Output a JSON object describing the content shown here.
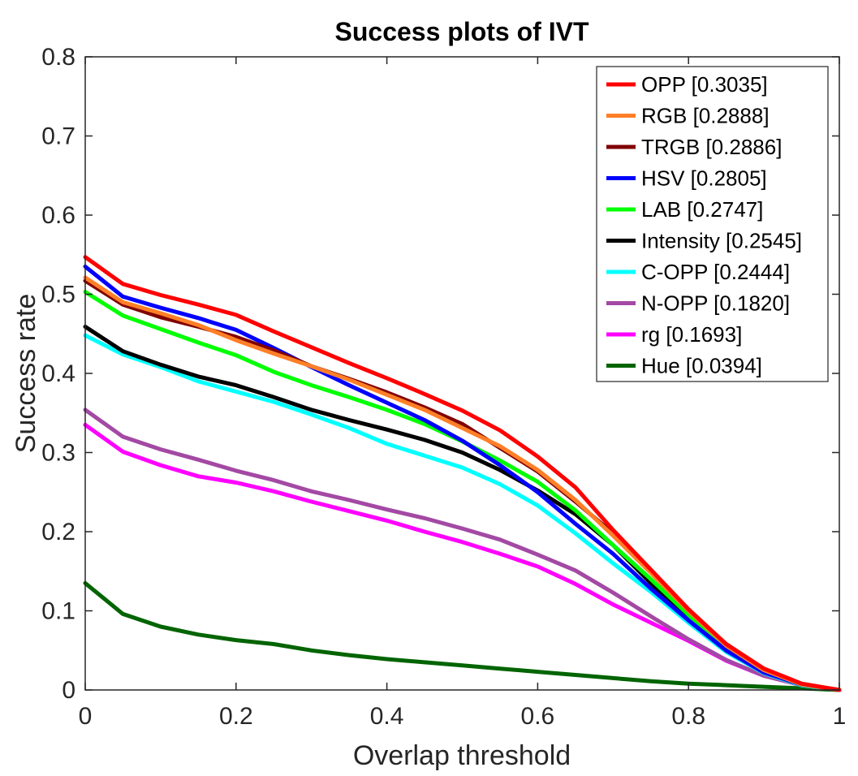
{
  "chart_data": {
    "type": "line",
    "title": "Success plots of IVT",
    "xlabel": "Overlap threshold",
    "ylabel": "Success rate",
    "xlim": [
      0,
      1
    ],
    "ylim": [
      0,
      0.8
    ],
    "xticks": [
      "0",
      "0.2",
      "0.4",
      "0.6",
      "0.8",
      "1"
    ],
    "yticks": [
      "0",
      "0.1",
      "0.2",
      "0.3",
      "0.4",
      "0.5",
      "0.6",
      "0.7",
      "0.8"
    ],
    "grid": false,
    "legend_position": "top-right",
    "x": [
      0,
      0.05,
      0.1,
      0.15,
      0.2,
      0.25,
      0.3,
      0.35,
      0.4,
      0.45,
      0.5,
      0.55,
      0.6,
      0.65,
      0.7,
      0.75,
      0.8,
      0.85,
      0.9,
      0.95,
      1
    ],
    "series": [
      {
        "name": "OPP [0.3035]",
        "color": "#ff0000",
        "values": [
          0.547,
          0.513,
          0.499,
          0.487,
          0.474,
          0.453,
          0.433,
          0.413,
          0.394,
          0.374,
          0.353,
          0.328,
          0.295,
          0.256,
          0.202,
          0.152,
          0.102,
          0.058,
          0.027,
          0.008,
          0
        ]
      },
      {
        "name": "RGB [0.2888]",
        "color": "#ff7f27",
        "values": [
          0.521,
          0.49,
          0.476,
          0.461,
          0.442,
          0.425,
          0.409,
          0.392,
          0.373,
          0.354,
          0.331,
          0.308,
          0.278,
          0.24,
          0.195,
          0.148,
          0.1,
          0.056,
          0.025,
          0.007,
          0
        ]
      },
      {
        "name": "TRGB [0.2886]",
        "color": "#800000",
        "values": [
          0.517,
          0.487,
          0.471,
          0.459,
          0.446,
          0.429,
          0.409,
          0.393,
          0.376,
          0.357,
          0.336,
          0.306,
          0.276,
          0.238,
          0.198,
          0.15,
          0.1,
          0.058,
          0.026,
          0.007,
          0
        ]
      },
      {
        "name": "HSV [0.2805]",
        "color": "#0000ff",
        "values": [
          0.535,
          0.497,
          0.483,
          0.47,
          0.455,
          0.432,
          0.408,
          0.385,
          0.363,
          0.341,
          0.315,
          0.284,
          0.25,
          0.21,
          0.172,
          0.128,
          0.088,
          0.05,
          0.022,
          0.007,
          0
        ]
      },
      {
        "name": "LAB [0.2747]",
        "color": "#00ff00",
        "values": [
          0.503,
          0.473,
          0.456,
          0.439,
          0.423,
          0.402,
          0.385,
          0.37,
          0.354,
          0.336,
          0.314,
          0.29,
          0.263,
          0.227,
          0.183,
          0.14,
          0.095,
          0.053,
          0.024,
          0.007,
          0
        ]
      },
      {
        "name": "Intensity [0.2545]",
        "color": "#000000",
        "values": [
          0.459,
          0.428,
          0.411,
          0.396,
          0.385,
          0.37,
          0.354,
          0.341,
          0.329,
          0.316,
          0.3,
          0.278,
          0.252,
          0.222,
          0.183,
          0.135,
          0.088,
          0.05,
          0.022,
          0.007,
          0
        ]
      },
      {
        "name": "C-OPP [0.2444]",
        "color": "#00ffff",
        "values": [
          0.448,
          0.424,
          0.408,
          0.39,
          0.377,
          0.364,
          0.348,
          0.331,
          0.311,
          0.296,
          0.281,
          0.26,
          0.233,
          0.198,
          0.16,
          0.124,
          0.085,
          0.048,
          0.021,
          0.006,
          0
        ]
      },
      {
        "name": "N-OPP [0.1820]",
        "color": "#a349a4",
        "values": [
          0.354,
          0.32,
          0.304,
          0.291,
          0.277,
          0.265,
          0.251,
          0.24,
          0.228,
          0.217,
          0.204,
          0.19,
          0.171,
          0.151,
          0.123,
          0.093,
          0.064,
          0.038,
          0.018,
          0.006,
          0
        ]
      },
      {
        "name": "rg [0.1693]",
        "color": "#ff00ff",
        "values": [
          0.335,
          0.301,
          0.284,
          0.27,
          0.262,
          0.251,
          0.238,
          0.226,
          0.214,
          0.2,
          0.187,
          0.172,
          0.156,
          0.134,
          0.108,
          0.085,
          0.062,
          0.037,
          0.018,
          0.006,
          0
        ]
      },
      {
        "name": "Hue [0.0394]",
        "color": "#006400",
        "values": [
          0.135,
          0.096,
          0.08,
          0.07,
          0.063,
          0.058,
          0.05,
          0.044,
          0.039,
          0.035,
          0.031,
          0.027,
          0.023,
          0.019,
          0.015,
          0.011,
          0.008,
          0.006,
          0.004,
          0.002,
          0
        ]
      }
    ]
  }
}
